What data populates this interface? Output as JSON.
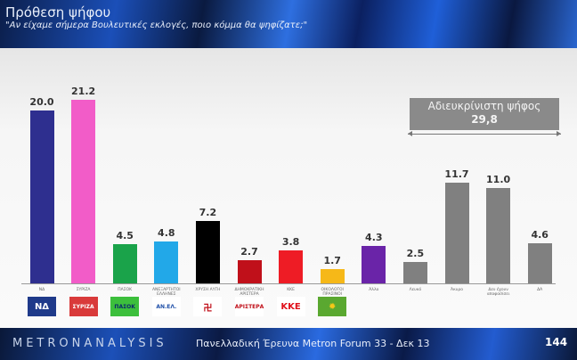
{
  "header": {
    "title": "Πρόθεση ψήφου",
    "subtitle": "\"Αν είχαμε σήμερα Βουλευτικές εκλογές, ποιο κόμμα θα ψηφίζατε;\""
  },
  "undecided_box": {
    "label": "Αδιευκρίνιστη ψήφος",
    "value": "29,8"
  },
  "footer": {
    "brand": "METRONANALYSIS",
    "survey": "Πανελλαδική Έρευνα Metron Forum 33 - Δεκ 13",
    "page": "144"
  },
  "chart_data": {
    "type": "bar",
    "title": "Πρόθεση ψήφου",
    "subtitle": "Αν είχαμε σήμερα Βουλευτικές εκλογές, ποιο κόμμα θα ψηφίζατε;",
    "xlabel": "",
    "ylabel": "%",
    "ylim": [
      0,
      22
    ],
    "grid": false,
    "categories": [
      "ΝΔ",
      "ΣΥΡΙΖΑ",
      "ΠΑΣΟΚ",
      "ΑΝΕΞΑΡΤΗΤΟΙ ΕΛΛΗΝΕΣ",
      "ΧΡΥΣΗ ΑΥΓΗ",
      "ΔΗΜΟΚΡΑΤΙΚΗ ΑΡΙΣΤΕΡΑ",
      "ΚΚΕ",
      "ΟΙΚΟΛΟΓΟΙ ΠΡΑΣΙΝΟΙ",
      "Άλλο",
      "Λευκό",
      "Άκυρο",
      "Δεν έχουν αποφασίσει",
      "ΔΑ"
    ],
    "values": [
      20.0,
      21.2,
      4.5,
      4.8,
      7.2,
      2.7,
      3.8,
      1.7,
      4.3,
      2.5,
      11.7,
      11.0,
      4.6
    ],
    "colors": [
      "#2e2f8f",
      "#f25cc8",
      "#1aa34a",
      "#22a8e8",
      "#000000",
      "#c0101a",
      "#ee1c25",
      "#f6b818",
      "#6a24a8",
      "#808080",
      "#808080",
      "#808080",
      "#808080"
    ],
    "annotations": [
      {
        "text": "Αδιευκρίνιστη ψήφος 29,8",
        "spans": [
          "Λευκό",
          "ΔΑ"
        ]
      }
    ]
  },
  "logos": [
    {
      "party": "ΝΔ",
      "text": "ΝΔ",
      "bg": "#1f3a8a",
      "fg": "#ffffff"
    },
    {
      "party": "ΣΥΡΙΖΑ",
      "text": "ΣΥΡΙΖΑ",
      "bg": "#d93a3a",
      "fg": "#ffffff"
    },
    {
      "party": "ΠΑΣΟΚ",
      "text": "ΠΑΣΟΚ",
      "bg": "#3cbf3c",
      "fg": "#0a2a6a"
    },
    {
      "party": "ΑΝΕΞΑΡΤΗΤΟΙ ΕΛΛΗΝΕΣ",
      "text": "ΑΝ.ΕΛ.",
      "bg": "#ffffff",
      "fg": "#1f4fa8"
    },
    {
      "party": "ΧΡΥΣΗ ΑΥΓΗ",
      "text": "卍",
      "bg": "#ffffff",
      "fg": "#c0101a"
    },
    {
      "party": "ΔΗΜΟΚΡΑΤΙΚΗ ΑΡΙΣΤΕΡΑ",
      "text": "ΑΡΙΣΤΕΡΑ",
      "bg": "#ffffff",
      "fg": "#c0101a"
    },
    {
      "party": "ΚΚΕ",
      "text": "ΚΚΕ",
      "bg": "#ffffff",
      "fg": "#e0101a"
    },
    {
      "party": "ΟΙΚΟΛΟΓΟΙ ΠΡΑΣΙΝΟΙ",
      "text": "✹",
      "bg": "#5aa830",
      "fg": "#f6c818"
    }
  ]
}
